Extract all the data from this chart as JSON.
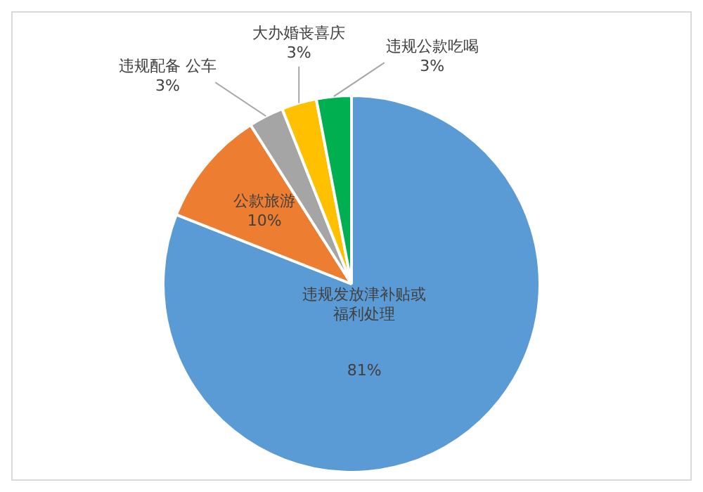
{
  "chart_data": {
    "type": "pie",
    "categories": [
      "违规发放津补贴或福利处理",
      "公款旅游",
      "违规配备 公车",
      "大办婚丧喜庆",
      "违规公款吃喝"
    ],
    "values": [
      81,
      10,
      3,
      3,
      3
    ],
    "colors": [
      "#5b9bd5",
      "#ed7d31",
      "#a5a5a5",
      "#ffc000",
      "#00b050"
    ],
    "value_labels": [
      "81%",
      "10%",
      "3%",
      "3%",
      "3%"
    ],
    "legend": false
  }
}
